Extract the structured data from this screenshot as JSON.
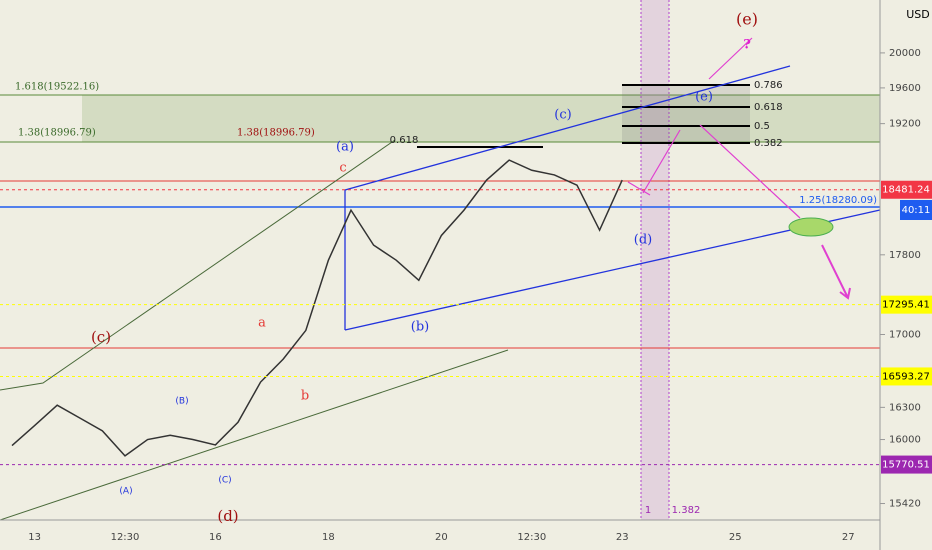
{
  "chart_data": {
    "type": "line",
    "unit": "USD",
    "log": true,
    "categories": [
      null,
      "13",
      null,
      null,
      null,
      "12:30",
      null,
      null,
      null,
      "16",
      null,
      null,
      null,
      null,
      "18",
      null,
      null,
      null,
      null,
      "20",
      null,
      null,
      null,
      "12:30",
      null,
      null,
      null,
      "23",
      null,
      null,
      null,
      null,
      "25",
      null,
      null,
      null,
      null,
      "27"
    ],
    "series": [
      {
        "color": "#333333",
        "values": [
          15945,
          16130,
          16320,
          16200,
          16080,
          15850,
          16000,
          16040,
          16000,
          15950,
          16160,
          16540,
          16760,
          17040,
          17745,
          18265,
          17900,
          17745,
          17540,
          18000,
          18265,
          18585,
          18800,
          18690,
          18640,
          18530,
          18055,
          18585,
          null,
          null,
          null,
          null,
          null,
          null,
          null,
          null,
          null,
          null
        ]
      }
    ],
    "ylim": [
      15230,
      20620
    ],
    "yticks": [
      20000,
      19600,
      19200,
      17800,
      17000,
      16300,
      16000,
      15420
    ],
    "price_labels": [
      {
        "value": 18481.24,
        "color": "#f23645",
        "text_color": "#ffffff"
      },
      {
        "value": 17295.41,
        "color": "#ffff00",
        "text_color": "#000000"
      },
      {
        "value": 16593.27,
        "color": "#ffff00",
        "text_color": "#000000"
      },
      {
        "value": 15770.51,
        "color": "#9c27b0",
        "text_color": "#ffffff"
      }
    ],
    "countdown": "40:11",
    "annotations": [
      "(e)",
      "?",
      "(a)",
      "c",
      "(c)",
      "(e)",
      "(d)",
      "(b)",
      "a",
      "b",
      "(c)",
      "(B)",
      "(A)",
      "(C)",
      "(d)",
      "0.618",
      "0.786",
      "0.618",
      "0.5",
      "0.382",
      "1.618(19522.16)",
      "1.38(18996.79)",
      "1.38(18996.79)",
      "1",
      "1.382",
      "1.25(18280.09)"
    ]
  }
}
